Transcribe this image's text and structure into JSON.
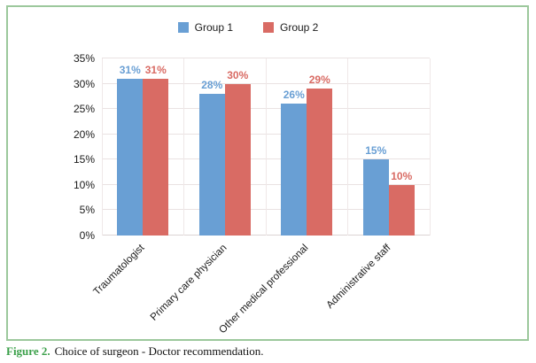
{
  "figure": {
    "caption_label": "Figure 2.",
    "caption_text": "Choice of surgeon - Doctor recommendation."
  },
  "legend": {
    "items": [
      {
        "label": "Group 1",
        "color": "#699FD4"
      },
      {
        "label": "Group 2",
        "color": "#D96B64"
      }
    ]
  },
  "chart_data": {
    "type": "bar",
    "title": "",
    "categories": [
      "Traumatologist",
      "Primary care physician",
      "Other medical professional",
      "Administrative staff"
    ],
    "series": [
      {
        "name": "Group 1",
        "color": "#699FD4",
        "values": [
          31,
          28,
          26,
          15
        ]
      },
      {
        "name": "Group 2",
        "color": "#D96B64",
        "values": [
          31,
          30,
          29,
          10
        ]
      }
    ],
    "value_suffix": "%",
    "ylim": [
      0,
      35
    ],
    "ytick_step": 5,
    "ytick_labels": [
      "0%",
      "5%",
      "10%",
      "15%",
      "20%",
      "25%",
      "30%",
      "35%"
    ],
    "grid": true,
    "legend_position": "top",
    "bar_labels_shown": true
  },
  "colors": {
    "border_green": "#9CC89C",
    "caption_green": "#3BA04A",
    "gridline": "#EAE2E2",
    "axis_text": "#1A1A1A",
    "background": "#FFFFFF"
  }
}
